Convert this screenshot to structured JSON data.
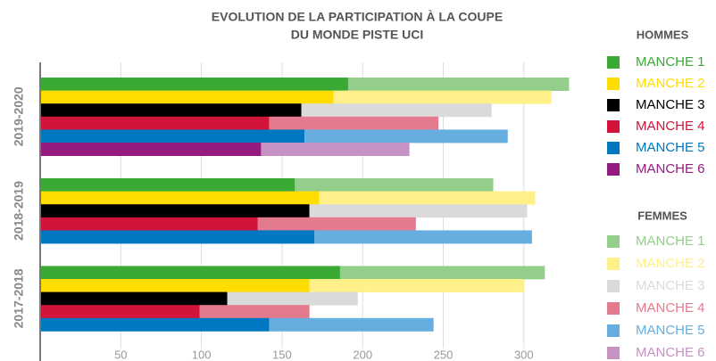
{
  "chart_data": {
    "type": "bar",
    "orientation": "horizontal",
    "stacked": true,
    "title": [
      "EVOLUTION DE LA PARTICIPATION À LA COUPE",
      "DU MONDE PISTE UCI"
    ],
    "categories": [
      "2019-2020",
      "2018-2019",
      "2017-2018"
    ],
    "xlim": [
      0,
      330
    ],
    "xticks": [
      50,
      100,
      150,
      200,
      250,
      300
    ],
    "grid": true,
    "legend": [
      {
        "title": "HOMMES",
        "series": [
          {
            "name": "MANCHE 1",
            "color": "#3aaa35",
            "values": [
              191,
              158,
              186
            ]
          },
          {
            "name": "MANCHE 2",
            "color": "#ffdd00",
            "values": [
              182,
              173,
              167
            ]
          },
          {
            "name": "MANCHE 3",
            "color": "#000000",
            "values": [
              162,
              167,
              116
            ]
          },
          {
            "name": "MANCHE 4",
            "color": "#d2143a",
            "values": [
              142,
              135,
              99
            ]
          },
          {
            "name": "MANCHE 5",
            "color": "#0077c0",
            "values": [
              164,
              170,
              142
            ]
          },
          {
            "name": "MANCHE 6",
            "color": "#951b81",
            "values": [
              137,
              null,
              null
            ]
          }
        ]
      },
      {
        "title": "FEMMES",
        "series": [
          {
            "name": "MANCHE 1",
            "color": "#93cf8a",
            "values": [
              137,
              123,
              127
            ]
          },
          {
            "name": "MANCHE 2",
            "color": "#fff08a",
            "values": [
              135,
              134,
              133
            ]
          },
          {
            "name": "MANCHE 3",
            "color": "#dadada",
            "values": [
              118,
              135,
              81
            ]
          },
          {
            "name": "MANCHE 4",
            "color": "#e47a8d",
            "values": [
              105,
              98,
              68
            ]
          },
          {
            "name": "MANCHE 5",
            "color": "#66aee0",
            "values": [
              126,
              135,
              102
            ]
          },
          {
            "name": "MANCHE 6",
            "color": "#c592c3",
            "values": [
              92,
              null,
              null
            ]
          }
        ]
      }
    ]
  }
}
